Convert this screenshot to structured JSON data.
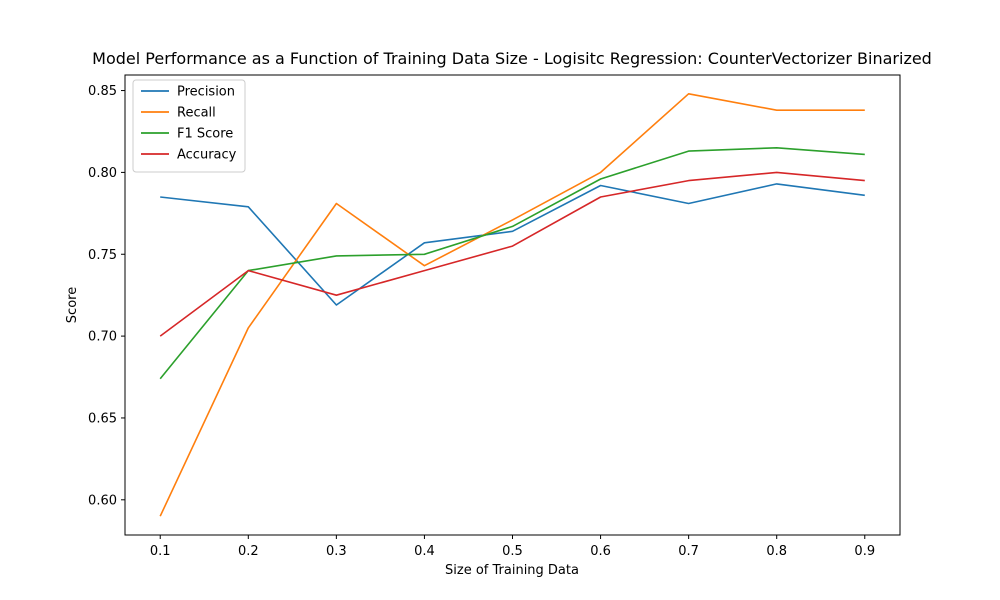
{
  "chart_data": {
    "type": "line",
    "title": "Model Performance as a Function of Training Data Size - Logisitc Regression: CounterVectorizer Binarized",
    "xlabel": "Size of Training Data",
    "ylabel": "Score",
    "x": [
      0.1,
      0.2,
      0.3,
      0.4,
      0.5,
      0.6,
      0.7,
      0.8,
      0.9
    ],
    "x_tick_labels": [
      "0.1",
      "0.2",
      "0.3",
      "0.4",
      "0.5",
      "0.6",
      "0.7",
      "0.8",
      "0.9"
    ],
    "y_tick_values": [
      0.6,
      0.65,
      0.7,
      0.75,
      0.8,
      0.85
    ],
    "y_tick_labels": [
      "0.60",
      "0.65",
      "0.70",
      "0.75",
      "0.80",
      "0.85"
    ],
    "xlim": [
      0.06,
      0.94
    ],
    "ylim": [
      0.5785,
      0.8595
    ],
    "grid": false,
    "legend_position": "upper-left",
    "series": [
      {
        "name": "Precision",
        "color": "#1f77b4",
        "values": [
          0.785,
          0.779,
          0.719,
          0.757,
          0.764,
          0.792,
          0.781,
          0.793,
          0.786
        ]
      },
      {
        "name": "Recall",
        "color": "#ff7f0e",
        "values": [
          0.59,
          0.705,
          0.781,
          0.743,
          0.771,
          0.8,
          0.848,
          0.838,
          0.838
        ]
      },
      {
        "name": "F1 Score",
        "color": "#2ca02c",
        "values": [
          0.674,
          0.74,
          0.749,
          0.75,
          0.767,
          0.796,
          0.813,
          0.815,
          0.811
        ]
      },
      {
        "name": "Accuracy",
        "color": "#d62728",
        "values": [
          0.7,
          0.74,
          0.725,
          0.74,
          0.755,
          0.785,
          0.795,
          0.8,
          0.795
        ]
      }
    ]
  }
}
